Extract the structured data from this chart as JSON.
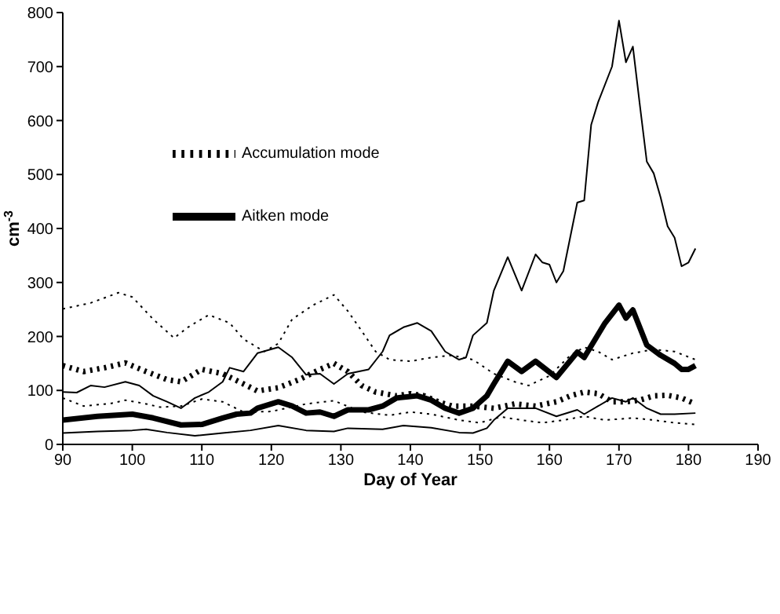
{
  "chart_data": {
    "type": "line",
    "xlabel": "Day of Year",
    "ylabel": "cm$^{-3}$",
    "xlim": [
      90,
      190
    ],
    "xticks": [
      90,
      100,
      110,
      120,
      130,
      140,
      150,
      160,
      170,
      180,
      190
    ],
    "ylim": [
      0,
      800
    ],
    "yticks": [
      0,
      100,
      200,
      300,
      400,
      500,
      600,
      700,
      800
    ],
    "legend": "top left",
    "marker": "none",
    "series": [
      {
        "name": "Aitken mode",
        "color": "#000000",
        "line_style": "solid",
        "x": [
          90,
          95,
          100,
          103,
          107,
          110,
          113,
          115,
          117,
          118,
          121,
          123,
          125,
          127,
          129,
          131,
          134,
          136,
          138,
          141,
          143,
          145,
          147,
          149,
          151,
          152,
          154,
          156,
          158,
          161,
          164,
          165,
          168,
          170,
          171,
          172,
          174,
          176,
          178,
          179,
          180,
          181
        ],
        "values": [
          45,
          52,
          56,
          49,
          36,
          37,
          49,
          56,
          58,
          67,
          79,
          71,
          58,
          60,
          52,
          64,
          64,
          71,
          86,
          90,
          82,
          67,
          58,
          67,
          90,
          112,
          154,
          135,
          154,
          124,
          171,
          161,
          225,
          258,
          234,
          249,
          184,
          165,
          150,
          139,
          139,
          146
        ]
      },
      {
        "color": "#000000",
        "line_style": "solid",
        "x": [
          90,
          92,
          94,
          96,
          99,
          101,
          103,
          105,
          107,
          109,
          111,
          113,
          114,
          116,
          118,
          121,
          123,
          125,
          127,
          129,
          131,
          134,
          136,
          137,
          139,
          141,
          143,
          145,
          147,
          148,
          149,
          151,
          152,
          154,
          156,
          158,
          159,
          160,
          161,
          162,
          164,
          165,
          166,
          167,
          169,
          170,
          171,
          172,
          173,
          174,
          175,
          176,
          177,
          178,
          179,
          180,
          181
        ],
        "values": [
          97,
          96,
          109,
          106,
          116,
          109,
          90,
          79,
          67,
          86,
          97,
          116,
          142,
          135,
          169,
          180,
          161,
          129,
          131,
          112,
          131,
          139,
          172,
          202,
          217,
          225,
          210,
          172,
          157,
          161,
          202,
          225,
          285,
          347,
          285,
          352,
          337,
          333,
          300,
          321,
          448,
          452,
          592,
          634,
          700,
          785,
          708,
          737,
          629,
          524,
          502,
          457,
          404,
          383,
          330,
          337,
          363
        ]
      },
      {
        "color": "#000000",
        "line_style": "solid",
        "x": [
          90,
          95,
          100,
          102,
          105,
          109,
          113,
          117,
          121,
          125,
          129,
          131,
          136,
          139,
          143,
          147,
          149,
          151,
          152,
          154,
          158,
          161,
          164,
          165,
          167,
          169,
          171,
          172,
          174,
          176,
          178,
          181
        ],
        "values": [
          21,
          24,
          26,
          28,
          22,
          16,
          21,
          26,
          35,
          26,
          24,
          30,
          28,
          35,
          31,
          22,
          21,
          30,
          45,
          67,
          67,
          52,
          64,
          56,
          71,
          86,
          79,
          86,
          67,
          56,
          56,
          58
        ]
      },
      {
        "name": "Accumulation mode",
        "color": "#000000",
        "line_style": "dotted",
        "x": [
          90,
          93,
          96,
          99,
          102,
          105,
          107,
          110,
          113,
          116,
          118,
          121,
          124,
          127,
          129,
          131,
          133,
          135,
          138,
          140,
          142,
          144,
          146,
          149,
          152,
          155,
          158,
          161,
          163,
          165,
          167,
          169,
          171,
          173,
          175,
          177,
          179,
          181
        ],
        "values": [
          146,
          135,
          142,
          151,
          135,
          120,
          116,
          139,
          131,
          112,
          99,
          105,
          120,
          139,
          150,
          135,
          109,
          97,
          90,
          94,
          90,
          79,
          71,
          71,
          67,
          75,
          71,
          79,
          90,
          97,
          94,
          79,
          79,
          82,
          90,
          91,
          86,
          75
        ]
      },
      {
        "color": "#000000",
        "line_style": "dotted",
        "x": [
          90,
          94,
          98,
          100,
          103,
          106,
          108,
          111,
          114,
          116,
          119,
          121,
          123,
          126,
          129,
          131,
          133,
          135,
          137,
          140,
          143,
          146,
          149,
          152,
          155,
          157,
          160,
          163,
          165,
          167,
          169,
          172,
          175,
          178,
          181
        ],
        "values": [
          251,
          262,
          281,
          273,
          232,
          197,
          217,
          240,
          225,
          195,
          172,
          187,
          232,
          258,
          277,
          247,
          210,
          172,
          157,
          154,
          161,
          165,
          157,
          131,
          116,
          109,
          127,
          165,
          180,
          172,
          157,
          169,
          176,
          172,
          157
        ]
      },
      {
        "color": "#000000",
        "line_style": "dotted",
        "x": [
          90,
          93,
          97,
          99,
          102,
          104,
          107,
          110,
          113,
          116,
          120,
          125,
          129,
          133,
          137,
          140,
          143,
          147,
          150,
          153,
          156,
          159,
          162,
          165,
          168,
          172,
          175,
          178,
          181
        ],
        "values": [
          86,
          71,
          76,
          82,
          75,
          69,
          71,
          84,
          79,
          60,
          61,
          75,
          81,
          60,
          54,
          60,
          56,
          45,
          40,
          51,
          45,
          40,
          45,
          52,
          45,
          49,
          45,
          40,
          37
        ]
      }
    ]
  }
}
